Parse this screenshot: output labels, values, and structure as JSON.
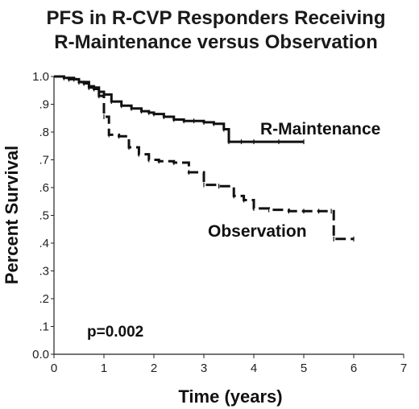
{
  "chart_data": {
    "type": "line",
    "title": "PFS in R-CVP Responders Receiving",
    "subtitle": "R-Maintenance versus Observation",
    "xlabel": "Time (years)",
    "ylabel": "Percent Survival",
    "xlim": [
      0,
      7
    ],
    "ylim": [
      0,
      1
    ],
    "x_ticks": [
      "0",
      "1",
      "2",
      "3",
      "4",
      "5",
      "6",
      "7"
    ],
    "y_ticks": [
      "0.0",
      ".1",
      ".2",
      ".3",
      ".4",
      ".5",
      ".6",
      ".7",
      ".8",
      ".9",
      "1.0"
    ],
    "annotation": "p=0.002",
    "grid": false,
    "series": [
      {
        "name": "R-Maintenance",
        "style": "solid",
        "color": "#111111",
        "x": [
          0,
          0.2,
          0.4,
          0.5,
          0.6,
          0.7,
          0.8,
          0.9,
          1.0,
          1.15,
          1.35,
          1.55,
          1.75,
          1.9,
          2.0,
          2.2,
          2.4,
          2.6,
          2.8,
          3.0,
          3.2,
          3.4,
          3.5,
          3.75,
          4.0,
          4.5,
          5.0
        ],
        "y": [
          1.0,
          0.995,
          0.99,
          0.98,
          0.975,
          0.965,
          0.955,
          0.945,
          0.935,
          0.91,
          0.895,
          0.885,
          0.875,
          0.87,
          0.865,
          0.855,
          0.845,
          0.84,
          0.84,
          0.835,
          0.83,
          0.81,
          0.765,
          0.765,
          0.765,
          0.765,
          0.765
        ]
      },
      {
        "name": "Observation",
        "style": "dashed",
        "color": "#111111",
        "x": [
          0,
          0.3,
          0.5,
          0.7,
          0.9,
          1.0,
          1.1,
          1.3,
          1.5,
          1.7,
          1.9,
          2.1,
          2.4,
          2.7,
          3.0,
          3.3,
          3.6,
          3.8,
          4.0,
          4.3,
          4.7,
          5.0,
          5.3,
          5.55,
          5.6,
          6.0
        ],
        "y": [
          1.0,
          0.99,
          0.98,
          0.96,
          0.93,
          0.855,
          0.79,
          0.785,
          0.745,
          0.72,
          0.7,
          0.695,
          0.69,
          0.655,
          0.61,
          0.605,
          0.57,
          0.555,
          0.525,
          0.52,
          0.515,
          0.515,
          0.515,
          0.515,
          0.415,
          0.415
        ]
      }
    ]
  }
}
